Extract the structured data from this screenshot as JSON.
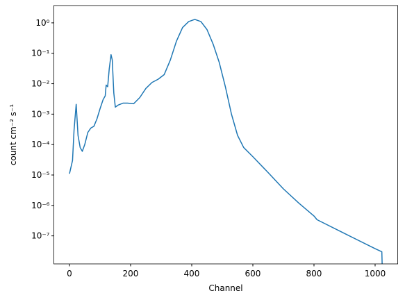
{
  "chart_data": {
    "type": "line",
    "x_label": "Channel",
    "y_label": "count cm⁻² s⁻¹",
    "log_y": true,
    "xlim": [
      -51.15,
      1074.15
    ],
    "ylim": [
      1.2e-08,
      3.7
    ],
    "xticks": [
      0,
      200,
      400,
      600,
      800,
      1000
    ],
    "yticks": [
      {
        "value": 1e-07,
        "label": "10⁻⁷"
      },
      {
        "value": 1e-06,
        "label": "10⁻⁶"
      },
      {
        "value": 1e-05,
        "label": "10⁻⁵"
      },
      {
        "value": 0.0001,
        "label": "10⁻⁴"
      },
      {
        "value": 0.001,
        "label": "10⁻³"
      },
      {
        "value": 0.01,
        "label": "10⁻²"
      },
      {
        "value": 0.1,
        "label": "10⁻¹"
      },
      {
        "value": 1,
        "label": "10⁰"
      }
    ],
    "x": [
      0,
      10,
      15,
      22,
      28,
      35,
      42,
      50,
      60,
      70,
      80,
      90,
      100,
      110,
      117,
      120,
      125,
      130,
      136,
      140,
      145,
      150,
      160,
      175,
      190,
      210,
      230,
      250,
      270,
      290,
      310,
      330,
      350,
      370,
      390,
      410,
      430,
      450,
      470,
      490,
      510,
      530,
      550,
      570,
      600,
      650,
      700,
      750,
      800,
      810,
      900,
      1000,
      1022,
      1023
    ],
    "series": [
      {
        "color": "#1f77b4",
        "values": [
          1.1e-05,
          3e-05,
          0.0003,
          0.0021,
          0.0002,
          8e-05,
          6e-05,
          0.0001,
          0.00025,
          0.00035,
          0.0004,
          0.0007,
          0.0015,
          0.003,
          0.004,
          0.009,
          0.008,
          0.03,
          0.09,
          0.06,
          0.005,
          0.0017,
          0.002,
          0.0023,
          0.0023,
          0.0022,
          0.0035,
          0.007,
          0.011,
          0.014,
          0.02,
          0.06,
          0.25,
          0.7,
          1.1,
          1.3,
          1.1,
          0.6,
          0.2,
          0.05,
          0.008,
          0.001,
          0.0002,
          8e-05,
          4e-05,
          1.2e-05,
          3.5e-06,
          1.2e-06,
          4.5e-07,
          3.4e-07,
          1.2e-07,
          3.8e-08,
          3e-08,
          1.2e-08
        ]
      }
    ]
  }
}
